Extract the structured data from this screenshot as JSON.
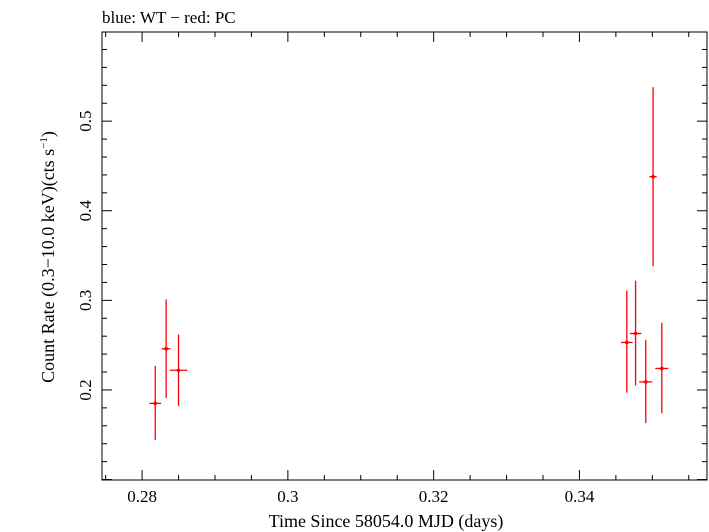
{
  "chart_data": {
    "type": "scatter",
    "title": "blue: WT − red: PC",
    "xlabel": "Time Since 58054.0 MJD (days)",
    "ylabel_main": "Count Rate (0.3−10.0 keV)(cts s",
    "ylabel_sup": "−1",
    "ylabel_close": ")",
    "xlim": [
      0.2745,
      0.3575
    ],
    "ylim": [
      0.0995,
      0.5995
    ],
    "xticks": [
      0.28,
      0.3,
      0.32,
      0.34
    ],
    "xtick_labels": [
      "0.28",
      "0.3",
      "0.32",
      "0.34"
    ],
    "yticks": [
      0.2,
      0.3,
      0.4,
      0.5
    ],
    "ytick_labels": [
      "0.2",
      "0.3",
      "0.4",
      "0.5"
    ],
    "series": [
      {
        "name": "PC",
        "color": "#ff0000",
        "points": [
          {
            "x": 0.2818,
            "xerr": 0.0008,
            "y": 0.185,
            "ylo": 0.144,
            "yhi": 0.227
          },
          {
            "x": 0.2833,
            "xerr": 0.0006,
            "y": 0.246,
            "ylo": 0.191,
            "yhi": 0.301
          },
          {
            "x": 0.285,
            "xerr": 0.0012,
            "y": 0.222,
            "ylo": 0.182,
            "yhi": 0.262
          },
          {
            "x": 0.3465,
            "xerr": 0.0008,
            "y": 0.253,
            "ylo": 0.197,
            "yhi": 0.311
          },
          {
            "x": 0.3477,
            "xerr": 0.0008,
            "y": 0.263,
            "ylo": 0.205,
            "yhi": 0.322
          },
          {
            "x": 0.3491,
            "xerr": 0.0009,
            "y": 0.209,
            "ylo": 0.163,
            "yhi": 0.256
          },
          {
            "x": 0.3501,
            "xerr": 0.0005,
            "y": 0.438,
            "ylo": 0.338,
            "yhi": 0.538
          },
          {
            "x": 0.3513,
            "xerr": 0.0009,
            "y": 0.224,
            "ylo": 0.174,
            "yhi": 0.275
          }
        ]
      }
    ]
  }
}
